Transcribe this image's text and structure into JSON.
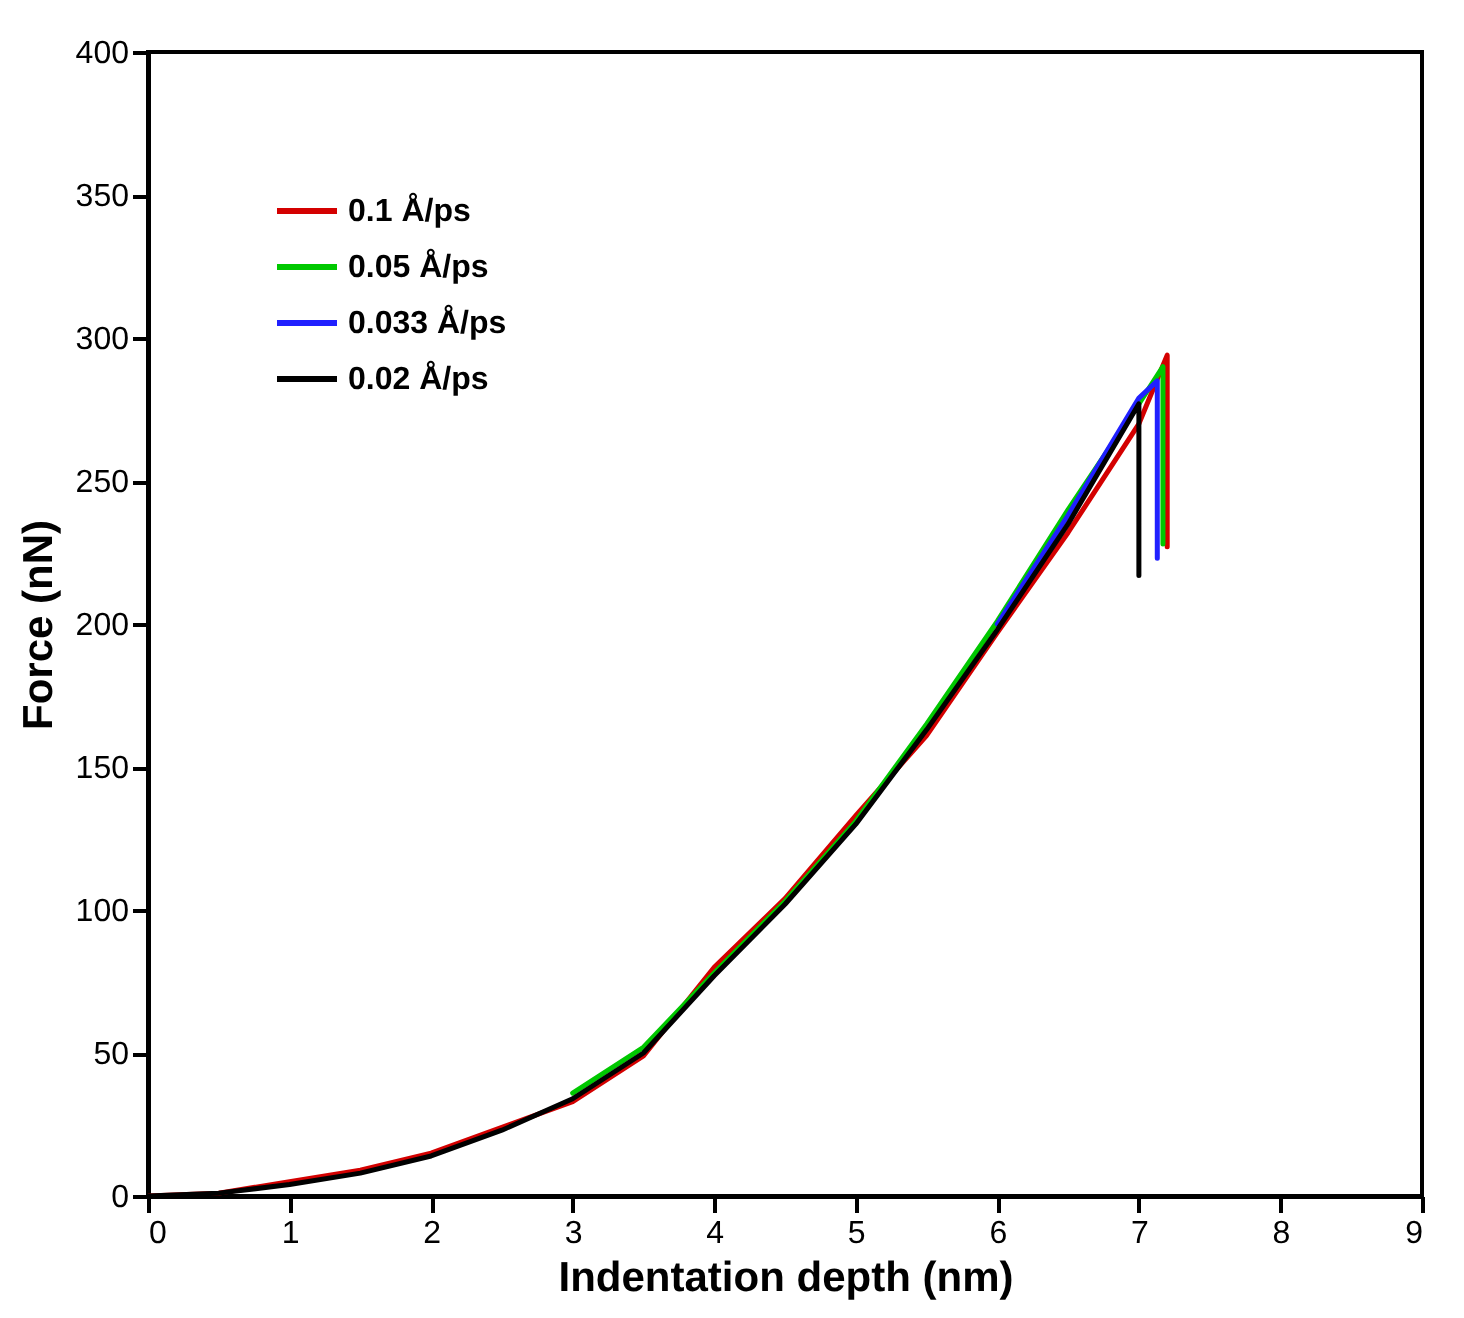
{
  "chart_data": {
    "type": "line",
    "xlabel": "Indentation depth (nm)",
    "ylabel": "Force (nN)",
    "xlim": [
      0,
      9
    ],
    "xticks": [
      0,
      1,
      2,
      3,
      4,
      5,
      6,
      7,
      8,
      9
    ],
    "ylim": [
      0,
      400
    ],
    "yticks": [
      0,
      50,
      100,
      150,
      200,
      250,
      300,
      350,
      400
    ],
    "grid": false,
    "legend": "top left",
    "marker": "none",
    "line_style": "solid",
    "series": [
      {
        "name": "0.1 Å/ps",
        "color": "#d40000",
        "x": [
          0,
          0.5,
          1,
          1.5,
          2,
          2.5,
          3,
          3.5,
          4,
          4.5,
          5,
          5.5,
          6,
          6.5,
          7,
          7.2,
          7.2
        ],
        "values": [
          0,
          1,
          5,
          9,
          15,
          24,
          33,
          49,
          80,
          104,
          133,
          161,
          197,
          232,
          270,
          294,
          227
        ]
      },
      {
        "name": "0.05 Å/ps",
        "color": "#00c800",
        "x": [
          3,
          3.5,
          4,
          4.5,
          5,
          5.5,
          6,
          6.5,
          7,
          7.17,
          7.17
        ],
        "values": [
          36,
          52,
          78,
          103,
          131,
          165,
          201,
          240,
          277,
          290,
          228
        ]
      },
      {
        "name": "0.033 Å/ps",
        "color": "#2020ff",
        "x": [
          6,
          6.5,
          7,
          7.13,
          7.13
        ],
        "values": [
          200,
          238,
          279,
          285,
          223
        ]
      },
      {
        "name": "0.02 Å/ps",
        "color": "#000000",
        "x": [
          0,
          0.5,
          1,
          1.5,
          2,
          2.5,
          3,
          3.5,
          4,
          4.5,
          5,
          5.5,
          6,
          6.5,
          7,
          7
        ],
        "values": [
          0,
          1,
          4,
          8,
          14,
          23,
          34,
          50,
          77,
          102,
          130,
          163,
          198,
          235,
          277,
          217
        ]
      }
    ]
  }
}
